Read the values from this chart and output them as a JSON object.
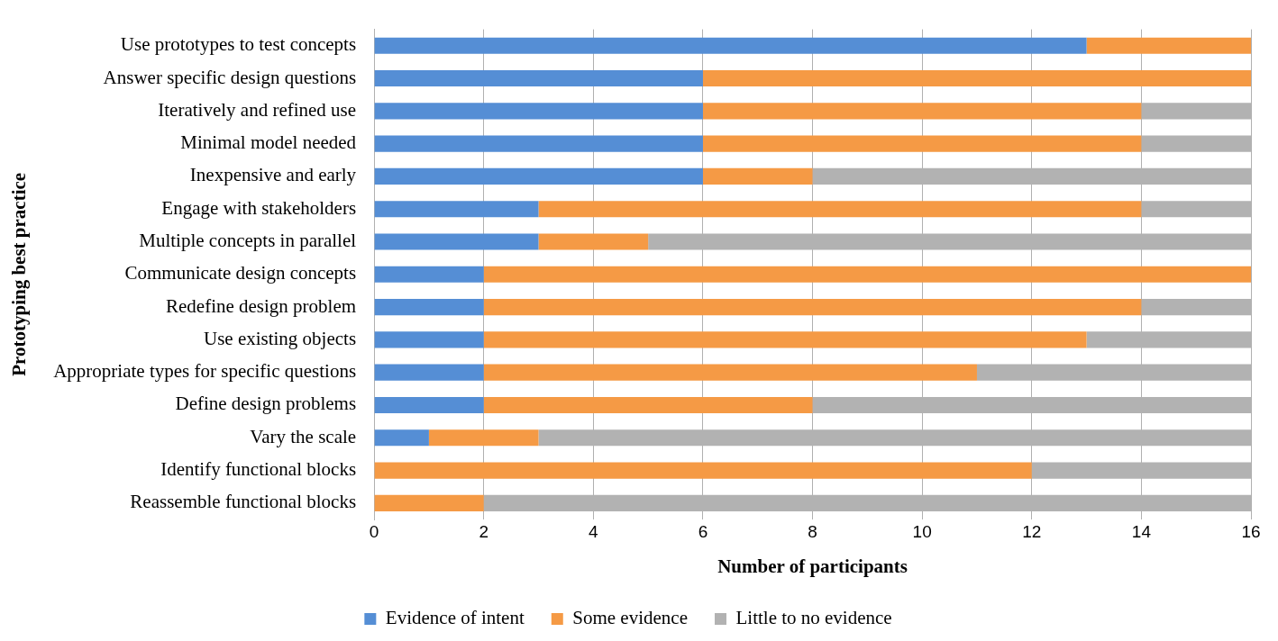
{
  "chart_data": {
    "type": "bar",
    "orientation": "horizontal",
    "stacked": true,
    "ylabel": "Prototyping best practice",
    "xlabel": "Number of participants",
    "categories": [
      "Use prototypes to test concepts",
      "Answer specific design questions",
      "Iteratively and refined use",
      "Minimal model needed",
      "Inexpensive and early",
      "Engage with stakeholders",
      "Multiple concepts in parallel",
      "Communicate design concepts",
      "Redefine design problem",
      "Use existing objects",
      "Appropriate types for specific questions",
      "Define design problems",
      "Vary the scale",
      "Identify functional blocks",
      "Reassemble functional blocks"
    ],
    "series": [
      {
        "name": "Evidence of intent",
        "color": "#558ed5",
        "values": [
          13,
          6,
          6,
          6,
          6,
          3,
          3,
          2,
          2,
          2,
          2,
          2,
          1,
          0,
          0
        ]
      },
      {
        "name": "Some evidence",
        "color": "#f59a45",
        "values": [
          3,
          10,
          8,
          8,
          2,
          11,
          2,
          14,
          12,
          11,
          9,
          6,
          2,
          12,
          2
        ]
      },
      {
        "name": "Little to no evidence",
        "color": "#b2b2b2",
        "values": [
          0,
          0,
          2,
          2,
          8,
          2,
          11,
          0,
          2,
          3,
          5,
          8,
          13,
          4,
          14
        ]
      }
    ],
    "xlim": [
      0,
      16
    ],
    "xticks": [
      0,
      2,
      4,
      6,
      8,
      10,
      12,
      14,
      16
    ],
    "grid": "x",
    "legend": "bottom"
  }
}
